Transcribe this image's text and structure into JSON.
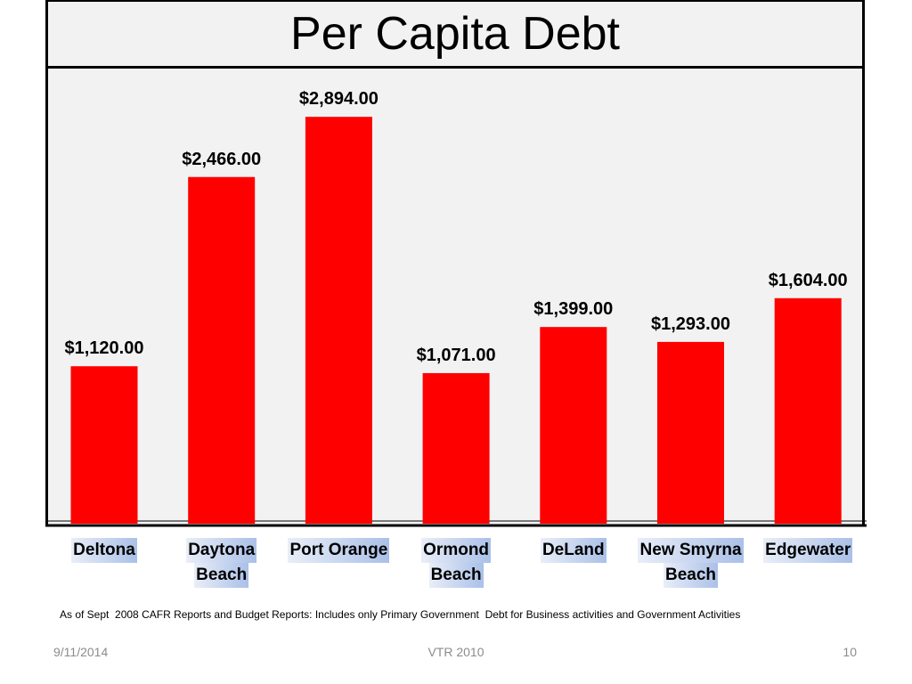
{
  "slide": {
    "title": "Per Capita Debt",
    "source_note": "As of Sept  2008 CAFR Reports and Budget Reports: Includes only Primary Government  Debt for Business activities and Government Activities",
    "footer_date": "9/11/2014",
    "footer_center": "VTR 2010",
    "footer_page": "10"
  },
  "colors": {
    "bar": "#ff0000",
    "panel": "#f2f2f2",
    "axis": "#000000"
  },
  "chart_data": {
    "type": "bar",
    "title": "Per Capita Debt",
    "categories": [
      "Deltona",
      "Daytona Beach",
      "Port Orange",
      "Ormond Beach",
      "DeLand",
      "New Smyrna Beach",
      "Edgewater"
    ],
    "category_lines": [
      [
        "Deltona"
      ],
      [
        "Daytona",
        "Beach"
      ],
      [
        "Port Orange"
      ],
      [
        "Ormond",
        "Beach"
      ],
      [
        "DeLand"
      ],
      [
        "New Smyrna",
        "Beach"
      ],
      [
        "Edgewater"
      ]
    ],
    "values": [
      1120,
      2466,
      2894,
      1071,
      1399,
      1293,
      1604
    ],
    "value_labels": [
      "$1,120.00",
      "$2,466.00",
      "$2,894.00",
      "$1,071.00",
      "$1,399.00",
      "$1,293.00",
      "$1,604.00"
    ],
    "xlabel": "",
    "ylabel": "",
    "ylim": [
      0,
      3250
    ],
    "grid": false,
    "legend": "none"
  }
}
